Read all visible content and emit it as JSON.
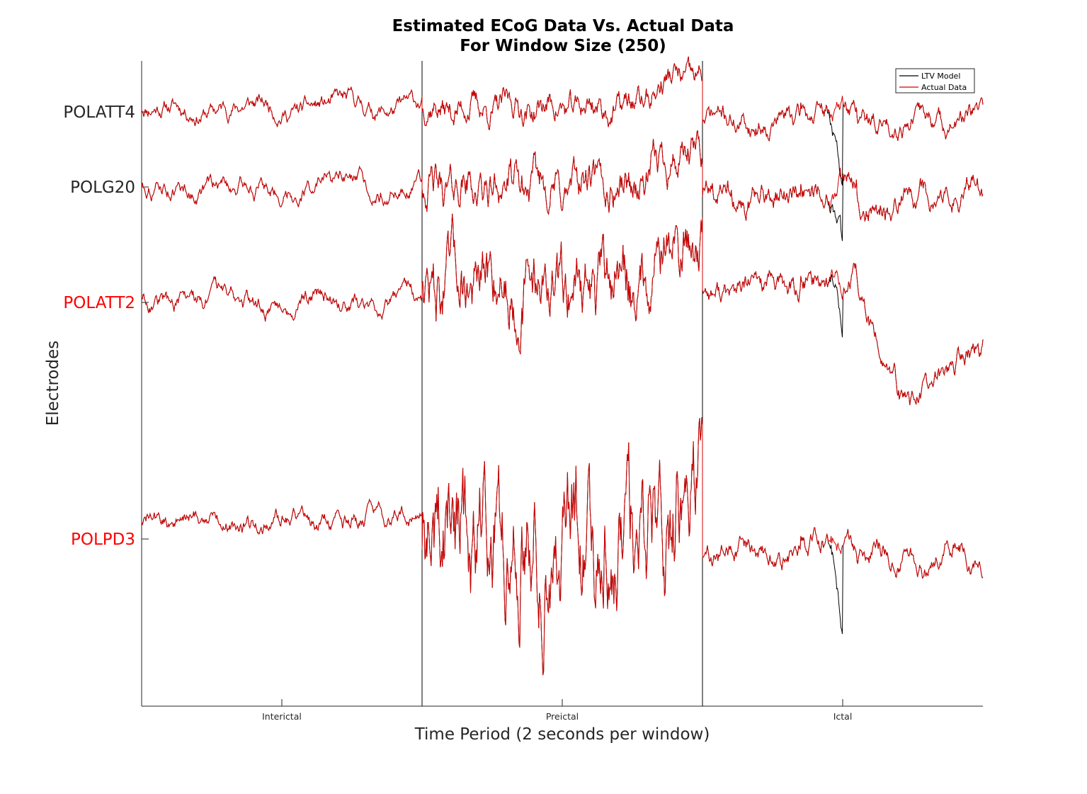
{
  "chart_data": {
    "type": "line",
    "title": [
      "Estimated ECoG Data Vs. Actual Data",
      "For Window Size (250)"
    ],
    "xlabel": "Time Period (2 seconds per window)",
    "ylabel": "Electrodes",
    "x_ticks": [
      "Interictal",
      "Preictal",
      "Ictal"
    ],
    "periods": [
      "Interictal",
      "Preictal",
      "Ictal"
    ],
    "legend": {
      "position": "top-right",
      "entries": [
        "LTV Model",
        "Actual Data"
      ]
    },
    "series_colors": {
      "LTV Model": "#000000",
      "Actual Data": "#d40000"
    },
    "tick_colors": {
      "normal": "#262626",
      "highlight": "#ff0000"
    },
    "electrodes": [
      {
        "name": "POLATT4",
        "highlight": false,
        "interictal": {
          "level": 0.0,
          "amp": 0.35
        },
        "preictal": {
          "level": 0.0,
          "amp": 0.6,
          "rise_to": 2.1
        },
        "ictal": {
          "level": -0.9,
          "amp": 0.45,
          "model_drop": -6.6
        }
      },
      {
        "name": "POLG20",
        "highlight": false,
        "interictal": {
          "level": 0.0,
          "amp": 0.35
        },
        "preictal": {
          "level": 0.0,
          "amp": 0.9,
          "rise_to": 2.2
        },
        "ictal": {
          "level": -0.6,
          "amp": 0.55,
          "model_drop": -4.6
        }
      },
      {
        "name": "POLATT2",
        "highlight": true,
        "interictal": {
          "level": 0.0,
          "amp": 0.35
        },
        "preictal": {
          "level": 1.2,
          "amp": 1.5,
          "rise_to": 3.8
        },
        "ictal": {
          "level": 0.7,
          "amp": 0.5,
          "model_drop": -2.8,
          "actual_dip": -7.6,
          "end_level": -3.4
        }
      },
      {
        "name": "POLPD3",
        "highlight": true,
        "interictal": {
          "level": 0.0,
          "amp": 0.35
        },
        "preictal": {
          "level": -1.0,
          "amp": 2.6,
          "rise_to": 2.2
        },
        "ictal": {
          "level": -2.5,
          "amp": 0.45,
          "model_drop": -6.5
        }
      }
    ]
  }
}
